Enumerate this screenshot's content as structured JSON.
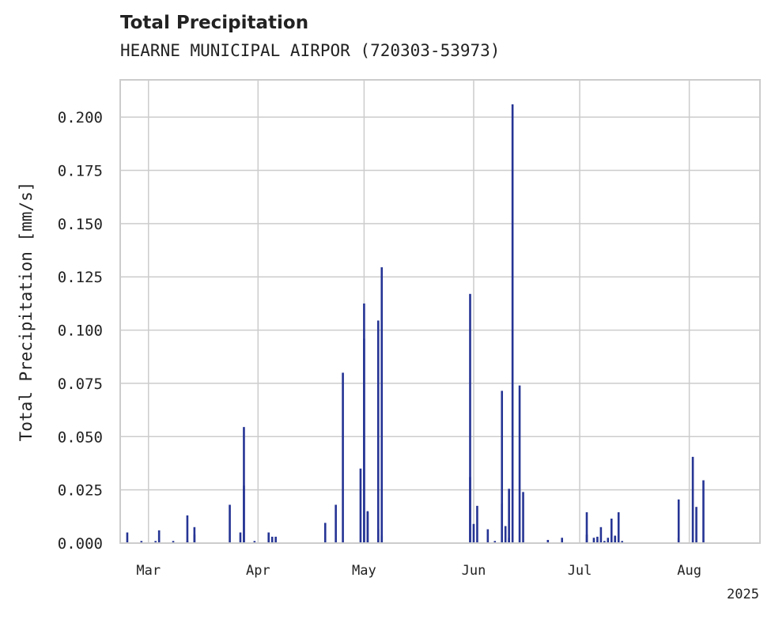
{
  "chart_data": {
    "type": "bar",
    "title": "Total Precipitation",
    "subtitle": "HEARNE MUNICIPAL AIRPOR (720303-53973)",
    "ylabel": "Total Precipitation [mm/s]",
    "xlabel": "",
    "year_label": "2025",
    "x_range": [
      "2025-02-21",
      "2025-08-21"
    ],
    "ylim": [
      0,
      0.2175
    ],
    "yticks": [
      0.0,
      0.025,
      0.05,
      0.075,
      0.1,
      0.125,
      0.15,
      0.175,
      0.2
    ],
    "ytick_labels": [
      "0.000",
      "0.025",
      "0.050",
      "0.075",
      "0.100",
      "0.125",
      "0.150",
      "0.175",
      "0.200"
    ],
    "xticks": [
      {
        "date": "2025-03-01",
        "label": "Mar"
      },
      {
        "date": "2025-04-01",
        "label": "Apr"
      },
      {
        "date": "2025-05-01",
        "label": "May"
      },
      {
        "date": "2025-06-01",
        "label": "Jun"
      },
      {
        "date": "2025-07-01",
        "label": "Jul"
      },
      {
        "date": "2025-08-01",
        "label": "Aug"
      }
    ],
    "grid": true,
    "color": "#253494",
    "series": [
      {
        "x": [
          "2025-02-23",
          "2025-02-27",
          "2025-03-03",
          "2025-03-04",
          "2025-03-08",
          "2025-03-12",
          "2025-03-12",
          "2025-03-14",
          "2025-03-14",
          "2025-03-24",
          "2025-03-27",
          "2025-03-28",
          "2025-03-28",
          "2025-03-31",
          "2025-04-04",
          "2025-04-05",
          "2025-04-06",
          "2025-04-20",
          "2025-04-23",
          "2025-04-25",
          "2025-04-30",
          "2025-05-01",
          "2025-05-01",
          "2025-05-02",
          "2025-05-02",
          "2025-05-05",
          "2025-05-05",
          "2025-05-06",
          "2025-05-06",
          "2025-05-31",
          "2025-05-31",
          "2025-06-01",
          "2025-06-02",
          "2025-06-05",
          "2025-06-07",
          "2025-06-09",
          "2025-06-09",
          "2025-06-10",
          "2025-06-11",
          "2025-06-11",
          "2025-06-12",
          "2025-06-14",
          "2025-06-15",
          "2025-06-22",
          "2025-06-26",
          "2025-07-03",
          "2025-07-03",
          "2025-07-05",
          "2025-07-06",
          "2025-07-07",
          "2025-07-08",
          "2025-07-09",
          "2025-07-10",
          "2025-07-11",
          "2025-07-11",
          "2025-07-12",
          "2025-07-13",
          "2025-07-29",
          "2025-07-29",
          "2025-08-02",
          "2025-08-03",
          "2025-08-05"
        ],
        "values": [
          0.005,
          0.001,
          0.001,
          0.006,
          0.001,
          0.013,
          0.001,
          0.0075,
          0.004,
          0.018,
          0.005,
          0.027,
          0.0545,
          0.001,
          0.005,
          0.003,
          0.003,
          0.0095,
          0.018,
          0.08,
          0.035,
          0.1125,
          0.096,
          0.015,
          0.0145,
          0.1045,
          0.0065,
          0.1295,
          0.0035,
          0.031,
          0.117,
          0.009,
          0.0175,
          0.0065,
          0.001,
          0.0715,
          0.0185,
          0.008,
          0.0255,
          0.0025,
          0.206,
          0.074,
          0.024,
          0.0015,
          0.0025,
          0.0145,
          0.004,
          0.0025,
          0.003,
          0.0075,
          0.001,
          0.0025,
          0.0115,
          0.003,
          0.0035,
          0.0145,
          0.001,
          0.0205,
          0.0025,
          0.0405,
          0.017,
          0.0295
        ]
      }
    ]
  }
}
